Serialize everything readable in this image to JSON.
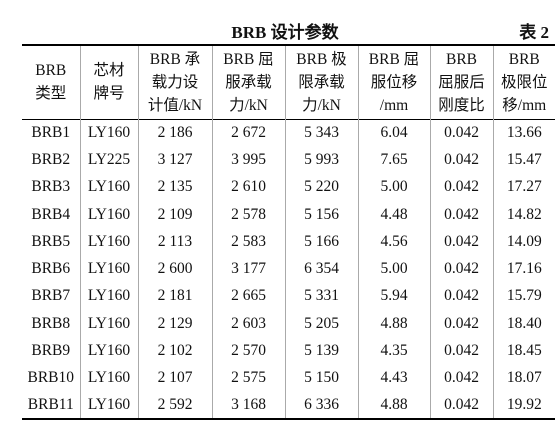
{
  "header": {
    "title": "BRB 设计参数",
    "label": "表 2"
  },
  "table": {
    "columns": [
      [
        "BRB",
        "类型"
      ],
      [
        "芯材",
        "牌号"
      ],
      [
        "BRB 承",
        "载力设",
        "计值/kN"
      ],
      [
        "BRB 屈",
        "服承载",
        "力/kN"
      ],
      [
        "BRB 极",
        "限承载",
        "力/kN"
      ],
      [
        "BRB 屈",
        "服位移",
        "/mm"
      ],
      [
        "BRB",
        "屈服后",
        "刚度比"
      ],
      [
        "BRB",
        "极限位",
        "移/mm"
      ]
    ],
    "rows": [
      [
        "BRB1",
        "LY160",
        "2 186",
        "2 672",
        "5 343",
        "6.04",
        "0.042",
        "13.66"
      ],
      [
        "BRB2",
        "LY225",
        "3 127",
        "3 995",
        "5 993",
        "7.65",
        "0.042",
        "15.47"
      ],
      [
        "BRB3",
        "LY160",
        "2 135",
        "2 610",
        "5 220",
        "5.00",
        "0.042",
        "17.27"
      ],
      [
        "BRB4",
        "LY160",
        "2 109",
        "2 578",
        "5 156",
        "4.48",
        "0.042",
        "14.82"
      ],
      [
        "BRB5",
        "LY160",
        "2 113",
        "2 583",
        "5 166",
        "4.56",
        "0.042",
        "14.09"
      ],
      [
        "BRB6",
        "LY160",
        "2 600",
        "3 177",
        "6 354",
        "5.00",
        "0.042",
        "17.16"
      ],
      [
        "BRB7",
        "LY160",
        "2 181",
        "2 665",
        "5 331",
        "5.94",
        "0.042",
        "15.79"
      ],
      [
        "BRB8",
        "LY160",
        "2 129",
        "2 603",
        "5 205",
        "4.88",
        "0.042",
        "18.40"
      ],
      [
        "BRB9",
        "LY160",
        "2 102",
        "2 570",
        "5 139",
        "4.35",
        "0.042",
        "18.45"
      ],
      [
        "BRB10",
        "LY160",
        "2 107",
        "2 575",
        "5 150",
        "4.43",
        "0.042",
        "18.07"
      ],
      [
        "BRB11",
        "LY160",
        "2 592",
        "3 168",
        "6 336",
        "4.88",
        "0.042",
        "19.92"
      ]
    ]
  }
}
